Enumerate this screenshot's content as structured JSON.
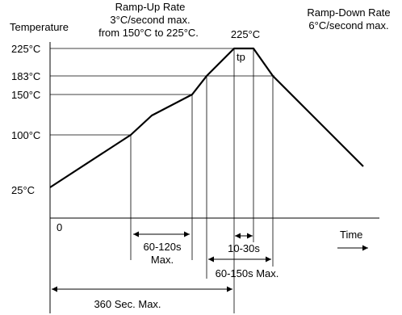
{
  "y_axis": {
    "title": "Temperature",
    "ticks": [
      "225°C",
      "183°C",
      "150°C",
      "100°C",
      "25°C"
    ]
  },
  "x_axis": {
    "origin_label": "0",
    "title": "Time"
  },
  "annotations": {
    "ramp_up": [
      "Ramp-Up Rate",
      "3°C/second max.",
      "from 150°C to 225°C."
    ],
    "ramp_down": [
      "Ramp-Down Rate",
      "6°C/second max."
    ],
    "peak": "225°C",
    "tp": "tp"
  },
  "durations": {
    "preheat": [
      "60-120s",
      "Max."
    ],
    "peak_time": "10-30s",
    "above_liquidus": "60-150s Max.",
    "total": "360 Sec. Max."
  }
}
